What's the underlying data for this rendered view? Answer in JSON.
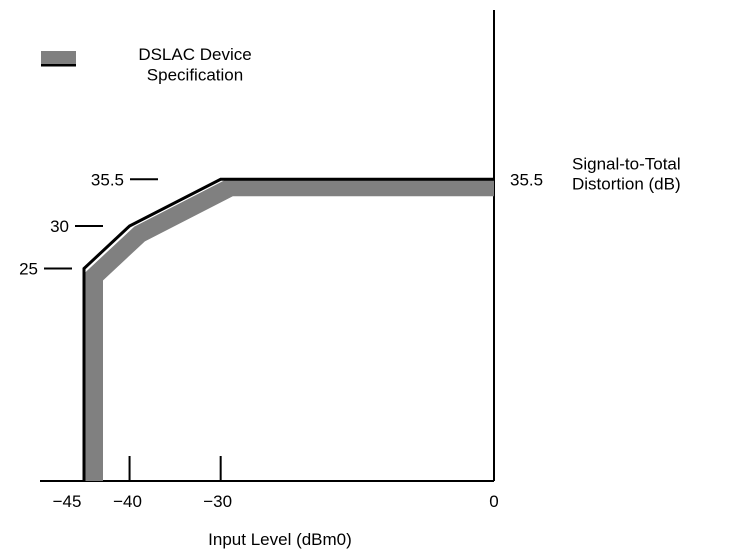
{
  "chart_data": {
    "type": "line",
    "xlabel": "Input Level (dBm0)",
    "ylabel": "Signal-to-Total\nDistortion (dB)",
    "xlim": [
      -45,
      0
    ],
    "ylim": [
      0,
      40
    ],
    "x_ticks": [
      {
        "value": -45,
        "label": "−45"
      },
      {
        "value": -40,
        "label": "−40"
      },
      {
        "value": -30,
        "label": "−30"
      },
      {
        "value": 0,
        "label": "0"
      }
    ],
    "y_ticks": [
      {
        "value": 35.5,
        "label": "35.5"
      },
      {
        "value": 30,
        "label": "30"
      },
      {
        "value": 25,
        "label": "25"
      }
    ],
    "right_axis_label": "35.5",
    "legend": {
      "label": "DSLAC Device\nSpecification",
      "position": "top-left"
    },
    "series": [
      {
        "name": "DSLAC Device Specification",
        "color": "#808080",
        "x": [
          -45,
          -45,
          -40,
          -30,
          0
        ],
        "y": [
          0,
          25,
          30,
          35.5,
          35.5
        ]
      }
    ],
    "limit_line": {
      "color": "#000000",
      "x": [
        -45,
        -45,
        -40,
        -30,
        0
      ],
      "y": [
        0,
        25,
        30,
        35.5,
        35.5
      ]
    }
  }
}
